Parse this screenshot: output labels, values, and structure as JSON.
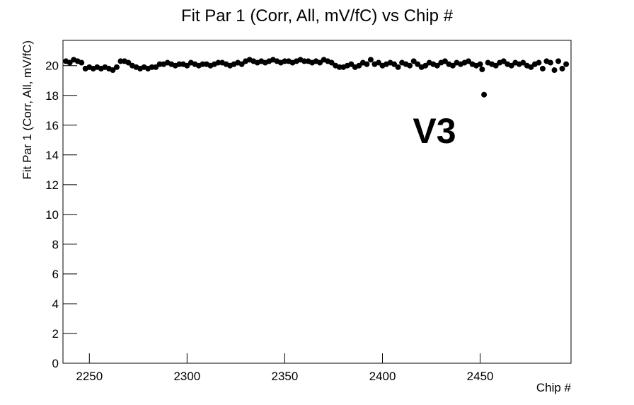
{
  "chart_data": {
    "type": "scatter",
    "title": "Fit Par 1 (Corr, All, mV/fC) vs Chip #",
    "x_label": "Chip #",
    "y_label": "Fit Par 1 (Corr, All, mV/fC)",
    "annotation": "V3",
    "annotation_color": "#ff0000",
    "color": "#000000",
    "x": [
      2238,
      2240,
      2242,
      2244,
      2246,
      2248,
      2250,
      2252,
      2254,
      2256,
      2258,
      2260,
      2262,
      2264,
      2266,
      2268,
      2270,
      2272,
      2274,
      2276,
      2278,
      2280,
      2282,
      2284,
      2286,
      2288,
      2290,
      2292,
      2294,
      2296,
      2298,
      2300,
      2302,
      2304,
      2306,
      2308,
      2310,
      2312,
      2314,
      2316,
      2318,
      2320,
      2322,
      2324,
      2326,
      2328,
      2330,
      2332,
      2334,
      2336,
      2338,
      2340,
      2342,
      2344,
      2346,
      2348,
      2350,
      2352,
      2354,
      2356,
      2358,
      2360,
      2362,
      2364,
      2366,
      2368,
      2370,
      2372,
      2374,
      2376,
      2378,
      2380,
      2382,
      2384,
      2386,
      2388,
      2390,
      2392,
      2394,
      2396,
      2398,
      2400,
      2402,
      2404,
      2406,
      2408,
      2410,
      2412,
      2414,
      2416,
      2418,
      2420,
      2422,
      2424,
      2426,
      2428,
      2430,
      2432,
      2434,
      2436,
      2438,
      2440,
      2442,
      2444,
      2446,
      2448,
      2450,
      2451,
      2452,
      2454,
      2456,
      2458,
      2460,
      2462,
      2464,
      2466,
      2468,
      2470,
      2472,
      2474,
      2476,
      2478,
      2480,
      2482,
      2484,
      2486,
      2488,
      2490,
      2492,
      2494
    ],
    "values": [
      20.3,
      20.2,
      20.4,
      20.3,
      20.2,
      19.8,
      19.9,
      19.8,
      19.9,
      19.8,
      19.9,
      19.8,
      19.7,
      19.9,
      20.3,
      20.3,
      20.2,
      20.0,
      19.9,
      19.8,
      19.9,
      19.8,
      19.9,
      19.9,
      20.1,
      20.1,
      20.2,
      20.1,
      20.0,
      20.1,
      20.1,
      20.0,
      20.2,
      20.1,
      20.0,
      20.1,
      20.1,
      20.0,
      20.1,
      20.2,
      20.2,
      20.1,
      20.0,
      20.1,
      20.2,
      20.1,
      20.3,
      20.4,
      20.3,
      20.2,
      20.3,
      20.2,
      20.3,
      20.4,
      20.3,
      20.2,
      20.3,
      20.3,
      20.2,
      20.3,
      20.4,
      20.3,
      20.3,
      20.2,
      20.3,
      20.2,
      20.4,
      20.3,
      20.2,
      20.0,
      19.9,
      19.9,
      20.0,
      20.1,
      19.9,
      20.0,
      20.2,
      20.1,
      20.4,
      20.1,
      20.2,
      20.0,
      20.1,
      20.2,
      20.1,
      19.9,
      20.2,
      20.1,
      20.0,
      20.3,
      20.1,
      19.9,
      20.0,
      20.2,
      20.1,
      20.0,
      20.2,
      20.3,
      20.1,
      20.0,
      20.2,
      20.1,
      20.2,
      20.3,
      20.1,
      20.0,
      20.1,
      19.75,
      18.05,
      20.2,
      20.1,
      20.0,
      20.2,
      20.3,
      20.1,
      20.0,
      20.2,
      20.1,
      20.2,
      20.0,
      19.9,
      20.1,
      20.2,
      19.8,
      20.3,
      20.2,
      19.7,
      20.3,
      19.8,
      20.1
    ],
    "xlim": [
      2236.5,
      2496.5
    ],
    "ylim": [
      0,
      21.7
    ],
    "xticks": [
      2250,
      2300,
      2350,
      2400,
      2450
    ],
    "yticks": [
      0,
      2,
      4,
      6,
      8,
      10,
      12,
      14,
      16,
      18,
      20
    ],
    "grid": false
  }
}
